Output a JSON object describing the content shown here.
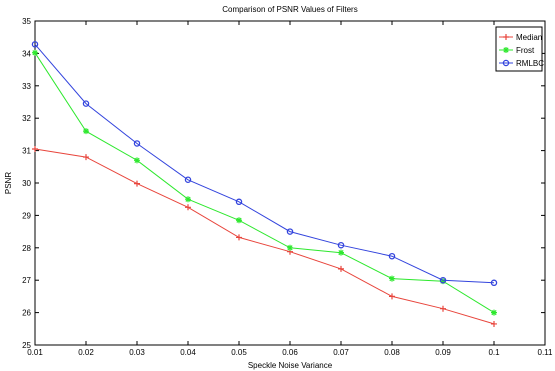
{
  "chart_data": {
    "type": "line",
    "title": "Comparison of PSNR Values of Filters",
    "xlabel": "Speckle Noise Variance",
    "ylabel": "PSNR",
    "xlim": [
      0.01,
      0.11
    ],
    "ylim": [
      25,
      35
    ],
    "xticks": [
      "0.01",
      "0.02",
      "0.03",
      "0.04",
      "0.05",
      "0.06",
      "0.07",
      "0.08",
      "0.09",
      "0.1",
      "0.11"
    ],
    "yticks": [
      "25",
      "26",
      "27",
      "28",
      "29",
      "30",
      "31",
      "32",
      "33",
      "34",
      "35"
    ],
    "grid": false,
    "legend_position": "top-right",
    "x": [
      0.01,
      0.02,
      0.03,
      0.04,
      0.05,
      0.06,
      0.07,
      0.08,
      0.09,
      0.1
    ],
    "series": [
      {
        "name": "Median",
        "color": "#e8453c",
        "marker": "plus",
        "values": [
          31.05,
          30.8,
          29.98,
          29.25,
          28.32,
          27.88,
          27.35,
          26.5,
          26.12,
          25.65
        ]
      },
      {
        "name": "Frost",
        "color": "#2ee82e",
        "marker": "star",
        "values": [
          34.02,
          31.6,
          30.7,
          29.5,
          28.85,
          28.0,
          27.85,
          27.05,
          26.97,
          26.0
        ]
      },
      {
        "name": "RMLBC",
        "color": "#3344dd",
        "marker": "circle",
        "values": [
          34.28,
          32.45,
          31.22,
          30.1,
          29.42,
          28.5,
          28.08,
          27.74,
          27.0,
          26.92
        ]
      }
    ]
  }
}
